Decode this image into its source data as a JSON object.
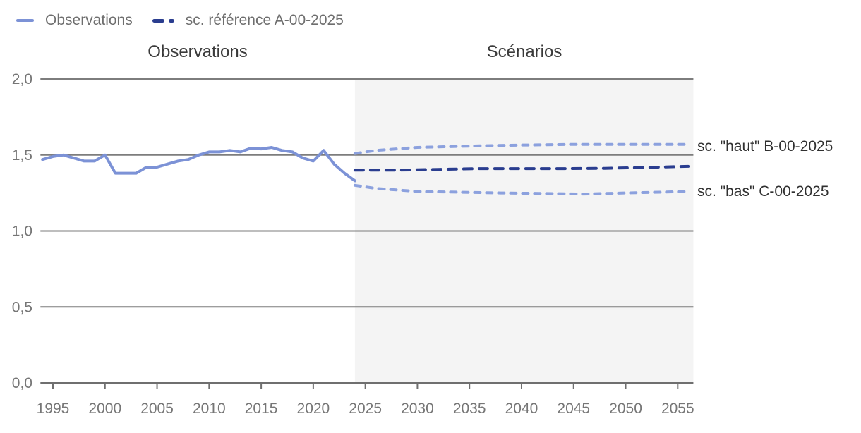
{
  "legend": {
    "items": [
      {
        "label": "Observations",
        "style": "solid",
        "color": "#7c92d6"
      },
      {
        "label": "sc. référence A-00-2025",
        "style": "dashed",
        "color": "#2a3d8f"
      }
    ]
  },
  "sections": [
    {
      "label": "Observations"
    },
    {
      "label": "Scénarios"
    }
  ],
  "annotations": [
    {
      "label": "sc. \"haut\" B-00-2025"
    },
    {
      "label": "sc. \"bas\" C-00-2025"
    }
  ],
  "colors": {
    "observations_blue": "#7c92d6",
    "scenario_light_blue": "#8ca1de",
    "reference_navy": "#2a3d8f",
    "grid_grey": "#7d7d7d",
    "axis_grey": "#6f6f6f",
    "tick_label_grey": "#767676",
    "shade_grey": "#f4f4f4",
    "section_label_grey": "#3a3a3a"
  },
  "chart_data": {
    "type": "line",
    "title": "",
    "xlabel": "",
    "ylabel": "",
    "xlim": [
      1993.8,
      2056.5
    ],
    "ylim": [
      0,
      2
    ],
    "grid": true,
    "x_ticks": [
      1995,
      2000,
      2005,
      2010,
      2015,
      2020,
      2025,
      2030,
      2035,
      2040,
      2045,
      2050,
      2055
    ],
    "y_ticks": [
      0,
      0.5,
      1,
      1.5,
      2
    ],
    "y_tick_labels": [
      "0,0",
      "0,5",
      "1,0",
      "1,5",
      "2,0"
    ],
    "zones": [
      {
        "label": "Observations",
        "from": 1993.8,
        "to": 2024,
        "shaded": false
      },
      {
        "label": "Scénarios",
        "from": 2024,
        "to": 2056.5,
        "shaded": true
      }
    ],
    "series": [
      {
        "name": "Observations",
        "style": "solid",
        "color": "#7c92d6",
        "x": [
          1994,
          1995,
          1996,
          1997,
          1998,
          1999,
          2000,
          2001,
          2002,
          2003,
          2004,
          2005,
          2006,
          2007,
          2008,
          2009,
          2010,
          2011,
          2012,
          2013,
          2014,
          2015,
          2016,
          2017,
          2018,
          2019,
          2020,
          2021,
          2022,
          2023,
          2024
        ],
        "values": [
          1.47,
          1.49,
          1.5,
          1.48,
          1.46,
          1.46,
          1.5,
          1.38,
          1.38,
          1.38,
          1.42,
          1.42,
          1.44,
          1.46,
          1.47,
          1.5,
          1.52,
          1.52,
          1.53,
          1.52,
          1.545,
          1.54,
          1.55,
          1.53,
          1.52,
          1.48,
          1.46,
          1.53,
          1.44,
          1.38,
          1.33
        ]
      },
      {
        "name": "sc. référence A-00-2025",
        "style": "dashed-long",
        "color": "#2a3d8f",
        "x": [
          2024,
          2028,
          2032,
          2036,
          2040,
          2044,
          2048,
          2052,
          2056
        ],
        "values": [
          1.4,
          1.4,
          1.405,
          1.41,
          1.41,
          1.41,
          1.412,
          1.418,
          1.425
        ]
      },
      {
        "name": "sc. \"haut\" B-00-2025",
        "style": "dashed-short",
        "color": "#8ca1de",
        "x": [
          2024,
          2026,
          2028,
          2030,
          2033,
          2036,
          2040,
          2045,
          2050,
          2056
        ],
        "values": [
          1.51,
          1.53,
          1.54,
          1.55,
          1.555,
          1.56,
          1.565,
          1.57,
          1.57,
          1.57
        ]
      },
      {
        "name": "sc. \"bas\" C-00-2025",
        "style": "dashed-short",
        "color": "#8ca1de",
        "x": [
          2024,
          2026,
          2028,
          2030,
          2034,
          2038,
          2042,
          2046,
          2050,
          2056
        ],
        "values": [
          1.3,
          1.28,
          1.27,
          1.26,
          1.255,
          1.25,
          1.247,
          1.243,
          1.25,
          1.26
        ]
      }
    ]
  }
}
